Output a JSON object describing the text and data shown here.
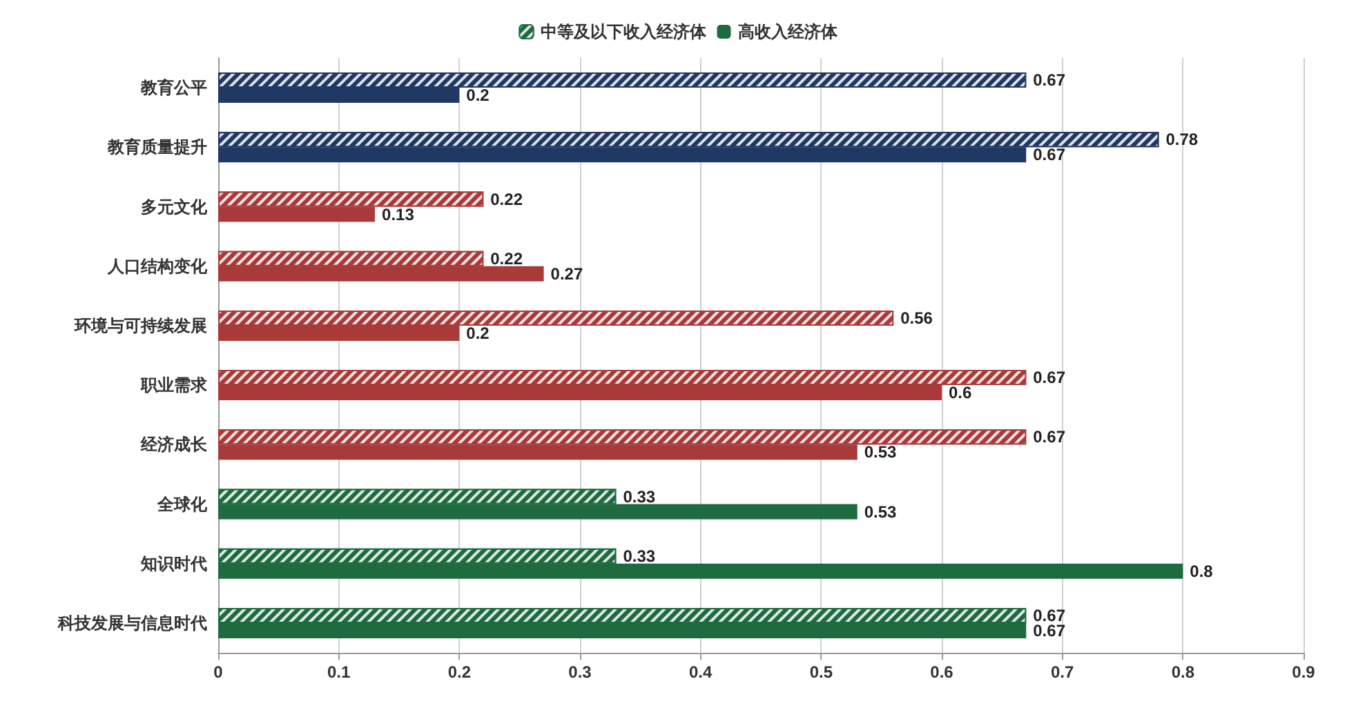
{
  "chart_data": {
    "type": "bar",
    "orientation": "horizontal",
    "categories": [
      "教育公平",
      "教育质量提升",
      "多元文化",
      "人口结构变化",
      "环境与可持续发展",
      "职业需求",
      "经济成长",
      "全球化",
      "知识时代",
      "科技发展与信息时代"
    ],
    "series": [
      {
        "name": "中等及以下收入经济体",
        "color": "#1e6b40",
        "colors": [
          "#203864",
          "#203864",
          "#a93a3a",
          "#a93a3a",
          "#a93a3a",
          "#a93a3a",
          "#a93a3a",
          "#1e6b40",
          "#1e6b40",
          "#1e6b40"
        ],
        "values": [
          0.67,
          0.78,
          0.22,
          0.22,
          0.56,
          0.67,
          0.67,
          0.33,
          0.33,
          0.67
        ]
      },
      {
        "name": "高收入经济体",
        "color": "#1e6b40",
        "colors": [
          "#203864",
          "#203864",
          "#a93a3a",
          "#a93a3a",
          "#a93a3a",
          "#a93a3a",
          "#a93a3a",
          "#1e6b40",
          "#1e6b40",
          "#1e6b40"
        ],
        "values": [
          0.2,
          0.67,
          0.13,
          0.27,
          0.2,
          0.6,
          0.53,
          0.53,
          0.8,
          0.67
        ]
      }
    ],
    "xlim": [
      0,
      0.9
    ],
    "xticks": [
      0,
      0.1,
      0.2,
      0.3,
      0.4,
      0.5,
      0.6,
      0.7,
      0.8,
      0.9
    ],
    "grid": "x",
    "legend": "top",
    "data_labels": true
  }
}
